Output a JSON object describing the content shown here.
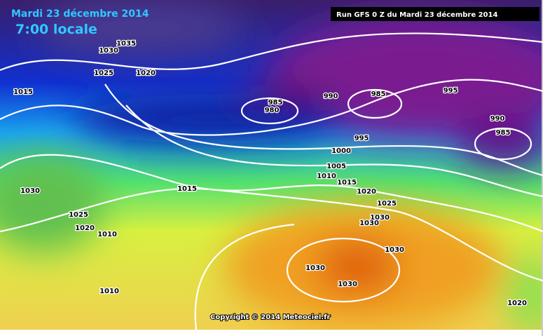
{
  "header": {
    "date": "Mardi 23 décembre 2014",
    "time": "7:00 locale"
  },
  "run_info": "Run GFS 0 Z du Mardi 23 décembre 2014",
  "copyright": "Copyright © 2014 Meteociel.fr",
  "isobar_labels": [
    1035,
    1030,
    1025,
    1020,
    1015,
    985,
    980,
    990,
    985,
    995,
    990,
    985,
    995,
    1000,
    1005,
    1010,
    1015,
    1020,
    1030,
    1015,
    1025,
    1025,
    1020,
    1010,
    1030,
    1030,
    1030,
    1030,
    1030,
    1010,
    1020
  ]
}
